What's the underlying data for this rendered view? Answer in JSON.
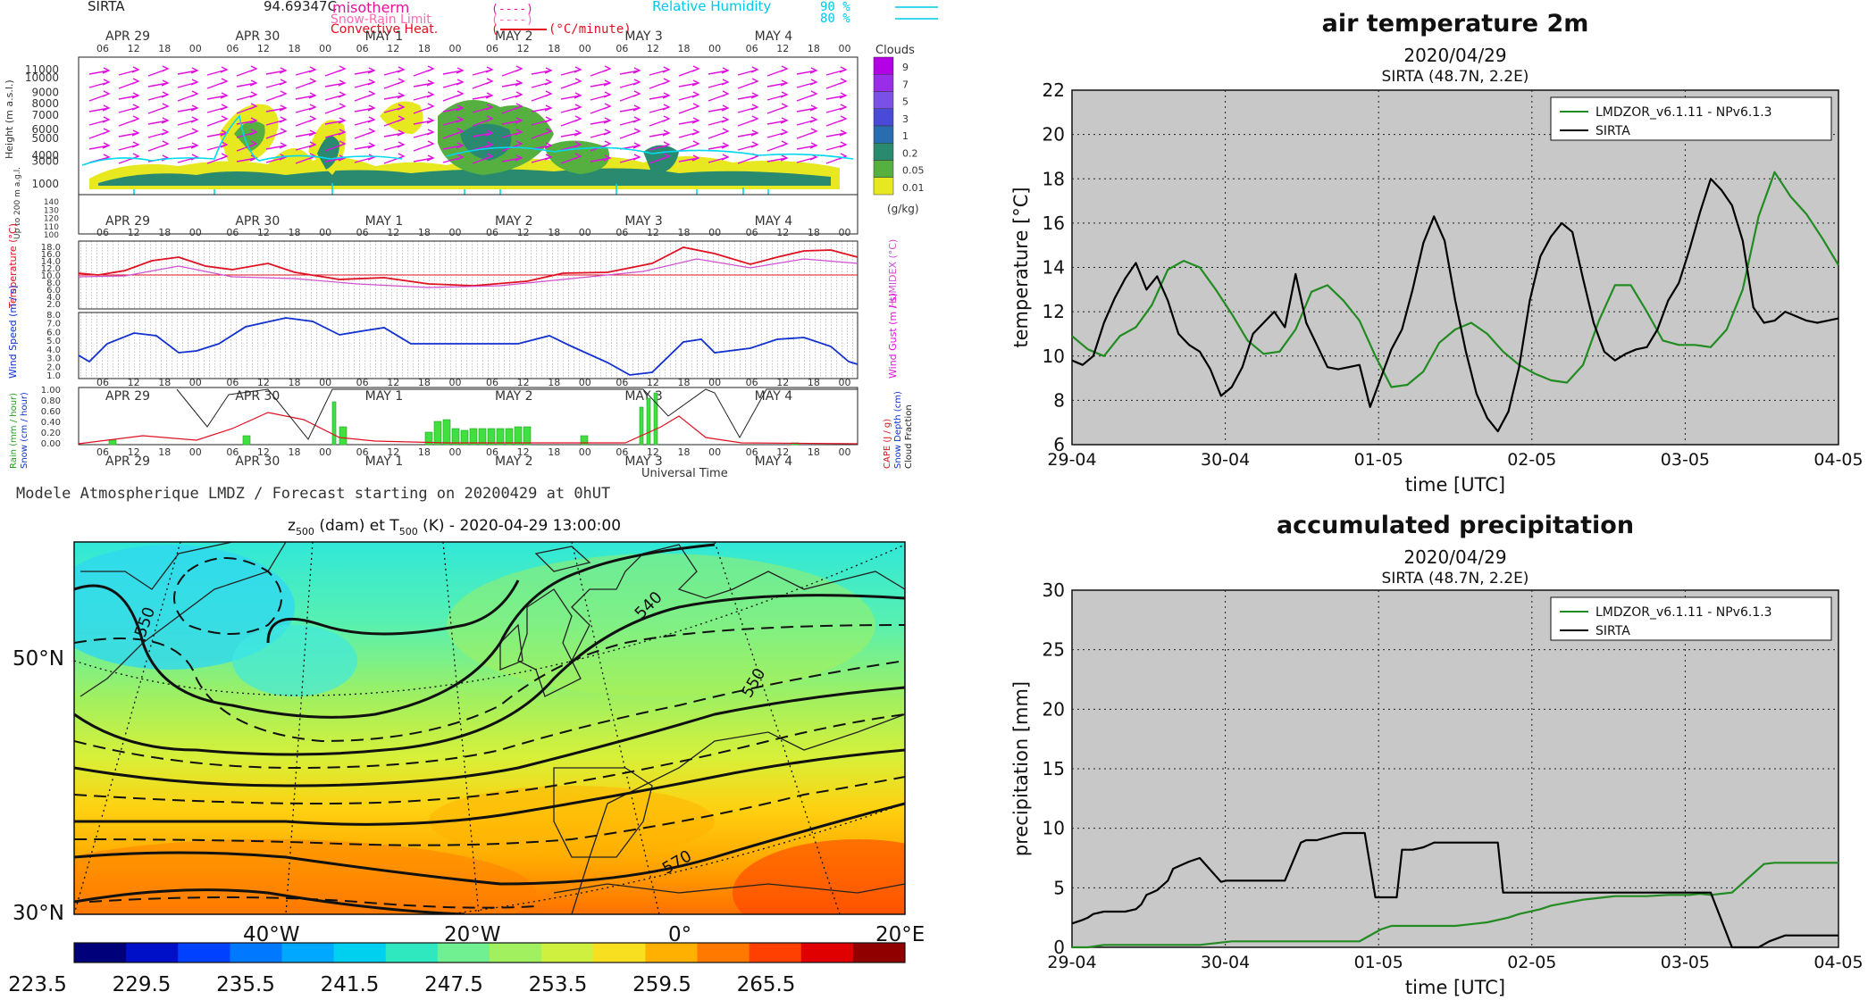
{
  "meteogram": {
    "station": "SIRTA",
    "station_value": "94.69347C",
    "legend_left": [
      "misotherm",
      "Snow-Rain Limit",
      "Convective Heat."
    ],
    "legend_left_unit": "(°C/minute)",
    "legend_right_label": "Relative Humidity",
    "legend_right_values": [
      "90 %",
      "80 %"
    ],
    "day_labels": [
      "APR 29",
      "APR 30",
      "MAY 1",
      "MAY 2",
      "MAY 3",
      "MAY 4"
    ],
    "hour_labels": [
      "06",
      "12",
      "18",
      "00"
    ],
    "clouds_title": "Clouds",
    "clouds_levels": [
      "9",
      "7",
      "5",
      "3",
      "1",
      "0.2",
      "0.05",
      "0.01"
    ],
    "clouds_unit": "(g/kg)",
    "clouds_colors": [
      "#b400e6",
      "#9a2ee8",
      "#7a50e6",
      "#4a4ad8",
      "#2a6cb0",
      "#2a8a70",
      "#55b040",
      "#e8e820"
    ],
    "height_label": "Height (m a.s.l.)",
    "height_ticks": [
      "11000",
      "9000",
      "7000",
      "5000",
      "3000",
      "1000"
    ],
    "height_ticks_minor": [
      "10000",
      "8000",
      "6000",
      "4000"
    ],
    "low_label": "Up to 200 m a.g.l.",
    "low_ticks": [
      "140",
      "130",
      "120",
      "110",
      "100"
    ],
    "temp_label": "Temperature (°C)",
    "humidex_label": "HUMIDEX (°C)",
    "temp_ticks": [
      "18.0",
      "14.0",
      "10.0",
      "6.0",
      "2.0"
    ],
    "temp_ticks_minor": [
      "16.0",
      "12.0",
      "8.0",
      "4.0"
    ],
    "wind_label": "Wind Speed (m / s)",
    "gust_label": "Wind Gust (m / s)",
    "wind_ticks": [
      "8.0",
      "7.0",
      "6.0",
      "5.0",
      "4.0",
      "3.0",
      "2.0",
      "1.0"
    ],
    "precip_left_label": "Rain (mm / hour)",
    "precip_left_label2": "Snow (cm / hour)",
    "precip_right_label": "CAPE (J / g)",
    "precip_right_label2": "Snow Depth (cm)",
    "precip_right_label3": "Cloud Fraction",
    "bottom_ticks": [
      "1.00",
      "0.80",
      "0.60",
      "0.40",
      "0.20",
      "0.00"
    ],
    "universal_time": "Universal Time",
    "footer": "Modele Atmospherique LMDZ / Forecast starting on 20200429 at 0hUT"
  },
  "map": {
    "title_main": "z",
    "title_sub1": "500",
    "title_mid": " (dam) et T",
    "title_sub2": "500",
    "title_end": " (K) - 2020-04-29 13:00:00",
    "lat_labels": [
      "50°N",
      "30°N"
    ],
    "lon_labels": [
      "40°W",
      "20°W",
      "0°",
      "20°E"
    ],
    "contour_labels": [
      "550",
      "540",
      "550",
      "570"
    ],
    "colorbar_ticks": [
      "223.5",
      "229.5",
      "235.5",
      "241.5",
      "247.5",
      "253.5",
      "259.5",
      "265.5"
    ],
    "colorbar_colors": [
      "#00007a",
      "#0010c8",
      "#0040ff",
      "#0078ff",
      "#00a8ff",
      "#00d0f0",
      "#30e8c0",
      "#70f090",
      "#a0f060",
      "#d0f040",
      "#f8e020",
      "#ffb000",
      "#ff7800",
      "#ff4000",
      "#e00000",
      "#900000"
    ]
  },
  "chart_data": [
    {
      "type": "line",
      "title": "air temperature 2m",
      "subtitle": "2020/04/29",
      "subtitle2": "SIRTA (48.7N, 2.2E)",
      "xlabel": "time [UTC]",
      "ylabel": "temperature [°C]",
      "xticks": [
        "29-04",
        "30-04",
        "01-05",
        "02-05",
        "03-05",
        "04-05"
      ],
      "yticks": [
        "6",
        "8",
        "10",
        "12",
        "14",
        "16",
        "18",
        "20",
        "22"
      ],
      "xlim": [
        0,
        144
      ],
      "ylim": [
        6,
        22
      ],
      "grid": true,
      "legend_position": "top-right",
      "series": [
        {
          "name": "LMDZOR_v6.1.11 - NPv6.1.3",
          "color": "#228b22",
          "x": [
            0,
            3,
            6,
            9,
            12,
            15,
            18,
            21,
            24,
            27,
            30,
            33,
            36,
            39,
            42,
            45,
            48,
            51,
            54,
            57,
            60,
            63,
            66,
            69,
            72,
            75,
            78,
            81,
            84,
            87,
            90,
            93,
            96,
            99,
            102,
            105,
            108,
            111,
            114,
            117,
            120,
            123,
            126,
            129,
            132,
            135,
            138,
            141,
            144
          ],
          "values": [
            10.9,
            10.3,
            10.0,
            10.9,
            11.3,
            12.3,
            13.9,
            14.3,
            14.0,
            13.0,
            11.9,
            10.7,
            10.1,
            10.2,
            11.2,
            12.9,
            13.2,
            12.5,
            11.6,
            10.0,
            8.6,
            8.7,
            9.3,
            10.6,
            11.2,
            11.5,
            11.0,
            10.2,
            9.6,
            9.2,
            8.9,
            8.8,
            9.6,
            11.6,
            13.2,
            13.2,
            12.0,
            10.7,
            10.5,
            10.5,
            10.4,
            11.2,
            13.0,
            16.3,
            18.3,
            17.2,
            16.4,
            15.3,
            14.1
          ]
        },
        {
          "name": "SIRTA",
          "color": "#000000",
          "x": [
            0,
            2,
            4,
            6,
            8,
            10,
            12,
            14,
            16,
            18,
            20,
            22,
            24,
            26,
            28,
            30,
            32,
            34,
            36,
            38,
            40,
            42,
            44,
            46,
            48,
            50,
            52,
            54,
            56,
            58,
            60,
            62,
            64,
            66,
            68,
            70,
            72,
            74,
            76,
            78,
            80,
            82,
            84,
            86,
            88,
            90,
            92,
            94,
            96,
            98,
            100,
            102,
            104,
            106,
            108,
            110,
            112,
            114,
            116,
            118,
            120,
            122,
            124,
            126,
            128,
            130,
            132,
            134,
            136,
            138,
            140,
            142,
            144
          ],
          "values": [
            9.8,
            9.6,
            10.0,
            11.5,
            12.6,
            13.5,
            14.2,
            13.0,
            13.6,
            12.5,
            11.0,
            10.5,
            10.2,
            9.4,
            8.2,
            8.6,
            9.5,
            11.0,
            11.5,
            12.0,
            11.3,
            13.7,
            11.5,
            10.5,
            9.5,
            9.4,
            9.5,
            9.6,
            7.7,
            9.0,
            10.3,
            11.2,
            13.0,
            15.1,
            16.3,
            15.2,
            12.5,
            10.2,
            8.3,
            7.2,
            6.6,
            7.5,
            9.5,
            12.5,
            14.5,
            15.4,
            16.0,
            15.6,
            13.5,
            11.5,
            10.2,
            9.8,
            10.1,
            10.3,
            10.4,
            11.2,
            12.5,
            13.3,
            14.8,
            16.5,
            18.0,
            17.5,
            16.8,
            15.2,
            12.2,
            11.5,
            11.6,
            12.0,
            11.8,
            11.6,
            11.5,
            11.6,
            11.7
          ]
        }
      ]
    },
    {
      "type": "line",
      "title": "accumulated precipitation",
      "subtitle": "2020/04/29",
      "subtitle2": "SIRTA (48.7N, 2.2E)",
      "xlabel": "time [UTC]",
      "ylabel": "precipitation [mm]",
      "xticks": [
        "29-04",
        "30-04",
        "01-05",
        "02-05",
        "03-05",
        "04-05"
      ],
      "yticks": [
        "0",
        "5",
        "10",
        "15",
        "20",
        "25",
        "30"
      ],
      "xlim": [
        0,
        144
      ],
      "ylim": [
        0,
        30
      ],
      "grid": true,
      "legend_position": "top-right",
      "series": [
        {
          "name": "LMDZOR_v6.1.11 - NPv6.1.3",
          "color": "#228b22",
          "x": [
            0,
            3,
            6,
            18,
            24,
            30,
            40,
            48,
            54,
            58,
            60,
            66,
            72,
            74,
            78,
            82,
            84,
            88,
            90,
            96,
            100,
            102,
            108,
            112,
            116,
            118,
            120,
            122,
            124,
            126,
            130,
            132,
            144
          ],
          "values": [
            0,
            0,
            0.2,
            0.2,
            0.2,
            0.5,
            0.5,
            0.5,
            0.5,
            1.5,
            1.8,
            1.8,
            1.8,
            1.9,
            2.1,
            2.5,
            2.8,
            3.2,
            3.5,
            4.0,
            4.2,
            4.3,
            4.3,
            4.4,
            4.4,
            4.5,
            4.4,
            4.5,
            4.6,
            5.4,
            7.0,
            7.1,
            7.1
          ]
        },
        {
          "name": "SIRTA",
          "color": "#000000",
          "x": [
            0,
            2,
            3,
            4,
            6,
            10,
            12,
            13,
            14,
            15,
            16,
            17,
            18,
            19,
            20,
            22,
            24,
            28,
            29,
            30,
            32,
            40,
            43,
            44,
            46,
            50,
            51,
            53,
            55,
            57,
            58,
            61,
            62,
            64,
            66,
            68,
            70,
            72,
            74,
            78,
            80,
            81,
            82,
            83,
            84,
            86,
            90,
            100,
            106,
            108,
            109,
            110,
            112,
            114,
            116,
            120,
            124,
            129,
            131,
            134,
            144
          ],
          "values": [
            2.0,
            2.3,
            2.5,
            2.8,
            3.0,
            3.0,
            3.2,
            3.6,
            4.4,
            4.6,
            4.8,
            5.2,
            5.6,
            6.6,
            6.8,
            7.2,
            7.5,
            5.5,
            5.6,
            5.6,
            5.6,
            5.6,
            8.8,
            9.0,
            9.0,
            9.5,
            9.6,
            9.6,
            9.6,
            4.2,
            4.2,
            4.2,
            8.2,
            8.2,
            8.4,
            8.8,
            8.8,
            8.8,
            8.8,
            8.8,
            8.8,
            4.6,
            4.6,
            4.6,
            4.6,
            4.6,
            4.6,
            4.6,
            4.6,
            4.6,
            4.6,
            4.6,
            4.6,
            4.6,
            4.6,
            4.6,
            0.0,
            0.0,
            0.5,
            1.0,
            1.0
          ]
        }
      ]
    }
  ]
}
